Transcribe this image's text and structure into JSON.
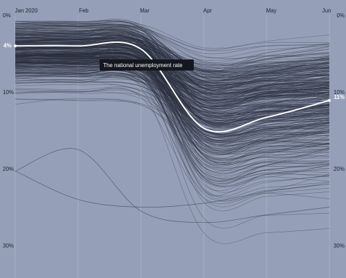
{
  "chart_data": {
    "type": "line",
    "x_ticks": [
      "Jan 2020",
      "Feb",
      "Mar",
      "Apr",
      "May",
      "Jun"
    ],
    "y_ticks_left": [
      "0%",
      "10%",
      "20%",
      "30%"
    ],
    "y_ticks_right": [
      "0%",
      "10%",
      "20%",
      "30%"
    ],
    "ylim": [
      0,
      33
    ],
    "y_inverted": true,
    "grid": "vertical",
    "highlight": {
      "tooltip": "The national unemployment rate",
      "start_label": "4%",
      "end_label": "11%",
      "x": [
        "Jan 2020",
        "Feb",
        "Mar",
        "Apr",
        "May",
        "Jun"
      ],
      "values": [
        4,
        4,
        4.4,
        14.7,
        13.3,
        11.1
      ]
    },
    "background_series_count": 420,
    "background_series_note_values_range": [
      1,
      33
    ]
  },
  "colors": {
    "background": "#959fb7",
    "lines": "#2a2e3c",
    "highlight": "#ffffff",
    "tooltip_bg": "#15171f",
    "text": "#1e2230"
  }
}
